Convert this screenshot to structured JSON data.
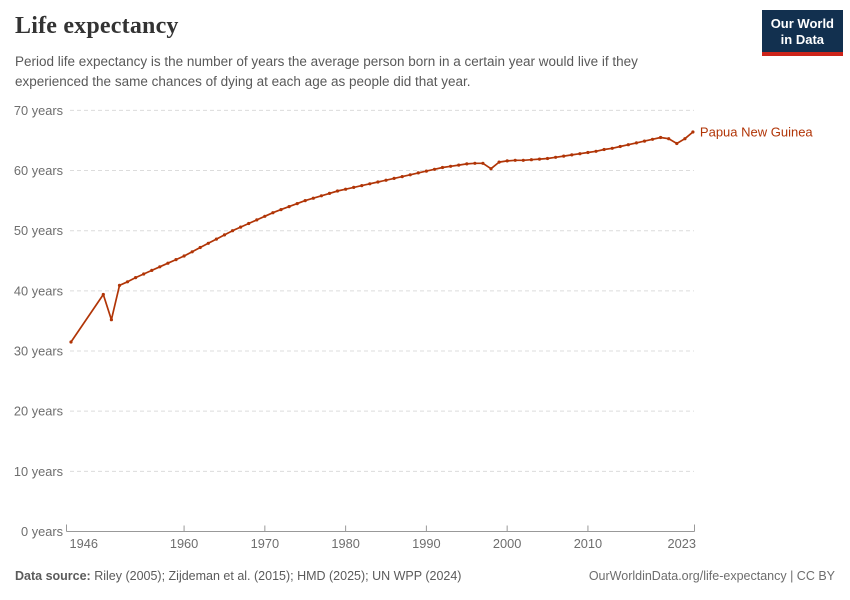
{
  "header": {
    "title": "Life expectancy",
    "subtitle": "Period life expectancy is the number of years the average person born in a certain year would live if they experienced the same chances of dying at each age as people did that year."
  },
  "logo": {
    "line1": "Our World",
    "line2": "in Data"
  },
  "colors": {
    "series": "#b13507",
    "axis": "#999999",
    "grid": "#dcdcdc",
    "logo_bg": "#12304f",
    "logo_accent": "#cd241a"
  },
  "chart_data": {
    "type": "line",
    "title": "Life expectancy",
    "xlabel": "",
    "ylabel": "",
    "xlim": [
      1946,
      2023
    ],
    "ylim": [
      0,
      70
    ],
    "grid": true,
    "legend_position": "end-of-line",
    "x_ticks": [
      1946,
      1960,
      1970,
      1980,
      1990,
      2000,
      2010,
      2023
    ],
    "x_tick_labels": [
      "1946",
      "1960",
      "1970",
      "1980",
      "1990",
      "2000",
      "2010",
      "2023"
    ],
    "y_ticks": [
      0,
      10,
      20,
      30,
      40,
      50,
      60,
      70
    ],
    "y_tick_labels": [
      "0 years",
      "10 years",
      "20 years",
      "30 years",
      "40 years",
      "50 years",
      "60 years",
      "70 years"
    ],
    "series": [
      {
        "name": "Papua New Guinea",
        "color": "#b13507",
        "x": [
          1946,
          1950,
          1951,
          1952,
          1953,
          1954,
          1955,
          1956,
          1957,
          1958,
          1959,
          1960,
          1961,
          1962,
          1963,
          1964,
          1965,
          1966,
          1967,
          1968,
          1969,
          1970,
          1971,
          1972,
          1973,
          1974,
          1975,
          1976,
          1977,
          1978,
          1979,
          1980,
          1981,
          1982,
          1983,
          1984,
          1985,
          1986,
          1987,
          1988,
          1989,
          1990,
          1991,
          1992,
          1993,
          1994,
          1995,
          1996,
          1997,
          1998,
          1999,
          2000,
          2001,
          2002,
          2003,
          2004,
          2005,
          2006,
          2007,
          2008,
          2009,
          2010,
          2011,
          2012,
          2013,
          2014,
          2015,
          2016,
          2017,
          2018,
          2019,
          2020,
          2021,
          2022,
          2023
        ],
        "values": [
          31.5,
          39.4,
          35.2,
          40.9,
          41.5,
          42.2,
          42.8,
          43.4,
          44.0,
          44.6,
          45.2,
          45.8,
          46.5,
          47.2,
          47.9,
          48.6,
          49.3,
          50.0,
          50.6,
          51.2,
          51.8,
          52.4,
          53.0,
          53.5,
          54.0,
          54.5,
          55.0,
          55.4,
          55.8,
          56.2,
          56.6,
          56.9,
          57.2,
          57.5,
          57.8,
          58.1,
          58.4,
          58.7,
          59.0,
          59.3,
          59.6,
          59.9,
          60.2,
          60.5,
          60.7,
          60.9,
          61.1,
          61.2,
          61.2,
          60.3,
          61.4,
          61.6,
          61.7,
          61.7,
          61.8,
          61.9,
          62.0,
          62.2,
          62.4,
          62.6,
          62.8,
          63.0,
          63.2,
          63.5,
          63.7,
          64.0,
          64.3,
          64.6,
          64.9,
          65.2,
          65.5,
          65.3,
          64.5,
          65.3,
          66.4
        ]
      }
    ]
  },
  "footer": {
    "source_label": "Data source:",
    "sources": " Riley (2005); Zijdeman et al. (2015); HMD (2025); UN WPP (2024)",
    "link": "OurWorldinData.org/life-expectancy | CC BY"
  }
}
